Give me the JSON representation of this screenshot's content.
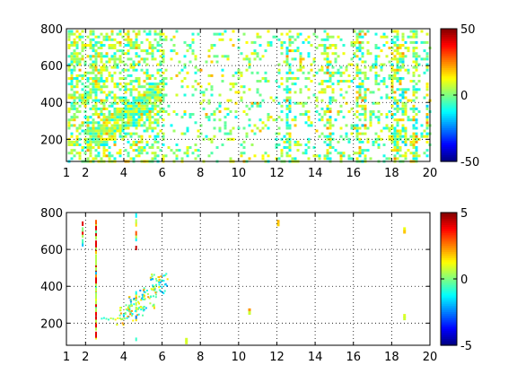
{
  "chart_data": [
    {
      "type": "heatmap",
      "title": "",
      "xlabel": "",
      "ylabel": "",
      "xlim": [
        1,
        20
      ],
      "ylim": [
        80,
        800
      ],
      "x_ticks": [
        "1",
        "2",
        "4",
        "6",
        "8",
        "10",
        "12",
        "14",
        "16",
        "18",
        "20"
      ],
      "y_ticks": [
        "200",
        "400",
        "600",
        "800"
      ],
      "grid": true,
      "colorbar": {
        "min": -50,
        "max": 50,
        "ticks": [
          "50",
          "0",
          "-50"
        ],
        "colormap": "jet"
      },
      "density": "dense",
      "features": {
        "dense_region_x": [
          1,
          6
        ],
        "diagonal_trend": [
          [
            2,
            200
          ],
          [
            4.5,
            350
          ],
          [
            6,
            480
          ]
        ],
        "vertical_bands_x": [
          12.5,
          14.7,
          16.2,
          16.5,
          18.0,
          18.3,
          18.6,
          19.2,
          19.8
        ]
      }
    },
    {
      "type": "heatmap",
      "title": "",
      "xlabel": "",
      "ylabel": "",
      "xlim": [
        1,
        20
      ],
      "ylim": [
        80,
        800
      ],
      "x_ticks": [
        "1",
        "2",
        "4",
        "6",
        "8",
        "10",
        "12",
        "14",
        "16",
        "18",
        "20"
      ],
      "y_ticks": [
        "200",
        "400",
        "600",
        "800"
      ],
      "grid": true,
      "colorbar": {
        "min": -5,
        "max": 5,
        "ticks": [
          "5",
          "0",
          "-5"
        ],
        "colormap": "jet"
      },
      "density": "sparse",
      "features": {
        "vertical_lines_x": [
          1.8,
          2.5,
          4.6
        ],
        "cluster": [
          [
            4,
            250
          ],
          [
            4.6,
            300
          ],
          [
            5.2,
            340
          ],
          [
            5.8,
            420
          ]
        ],
        "isolated_points": [
          [
            7.2,
            120
          ],
          [
            10.5,
            280
          ],
          [
            12,
            760
          ],
          [
            18.6,
            720
          ],
          [
            18.6,
            250
          ]
        ]
      }
    }
  ]
}
